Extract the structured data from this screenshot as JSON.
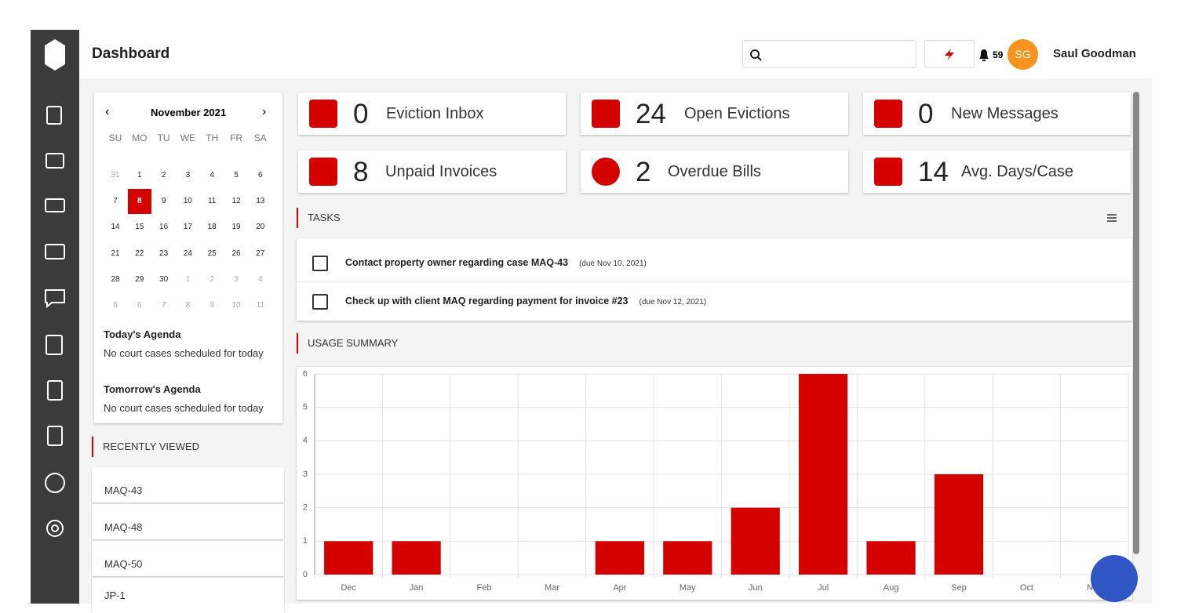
{
  "header": {
    "title": "Dashboard",
    "notification_count": "59",
    "avatar_initials": "SG",
    "user_name": "Saul Goodman"
  },
  "calendar": {
    "month": "November 2021",
    "weekdays": [
      "SU",
      "MO",
      "TU",
      "WE",
      "TH",
      "FR",
      "SA"
    ],
    "weeks": [
      [
        31,
        1,
        2,
        3,
        4,
        5,
        6
      ],
      [
        7,
        8,
        9,
        10,
        11,
        12,
        13
      ],
      [
        14,
        15,
        16,
        17,
        18,
        19,
        20
      ],
      [
        21,
        22,
        23,
        24,
        25,
        26,
        27
      ],
      [
        28,
        29,
        30,
        1,
        2,
        3,
        4
      ],
      [
        5,
        6,
        7,
        8,
        9,
        10,
        11
      ]
    ]
  },
  "agenda": [
    {
      "title": "Today's Agenda",
      "text": "No court cases scheduled for today"
    },
    {
      "title": "Tomorrow's Agenda",
      "text": "No court cases scheduled for today"
    }
  ],
  "recently_viewed": {
    "title": "RECENTLY VIEWED",
    "items": [
      "MAQ-43",
      "MAQ-48",
      "MAQ-50",
      "JP-1"
    ]
  },
  "stats": [
    {
      "value": "0",
      "label": "Eviction Inbox"
    },
    {
      "value": "24",
      "label": "Open Evictions"
    },
    {
      "value": "0",
      "label": "New Messages"
    },
    {
      "value": "8",
      "label": "Unpaid Invoices"
    },
    {
      "value": "2",
      "label": "Overdue Bills"
    },
    {
      "value": "14",
      "label": "Avg. Days/Case"
    }
  ],
  "tasks": {
    "title": "TASKS",
    "items": [
      {
        "text": "Contact property owner regarding case MAQ-43",
        "due": "(due Nov 10, 2021)"
      },
      {
        "text": "Check up with client MAQ regarding payment for invoice #23",
        "due": "(due Nov 12, 2021)"
      }
    ]
  },
  "usage_title": "USAGE SUMMARY",
  "chart_data": {
    "type": "bar",
    "categories": [
      "Dec",
      "Jan",
      "Feb",
      "Mar",
      "Apr",
      "May",
      "Jun",
      "Jul",
      "Aug",
      "Sep",
      "Oct",
      "Nov"
    ],
    "values": [
      1,
      1,
      0,
      0,
      1,
      1,
      2,
      6,
      1,
      3,
      0,
      0
    ],
    "color": "#d50000",
    "ylim": [
      0,
      6
    ],
    "yticks": [
      0,
      1,
      2,
      3,
      4,
      5,
      6
    ],
    "grid": true
  }
}
